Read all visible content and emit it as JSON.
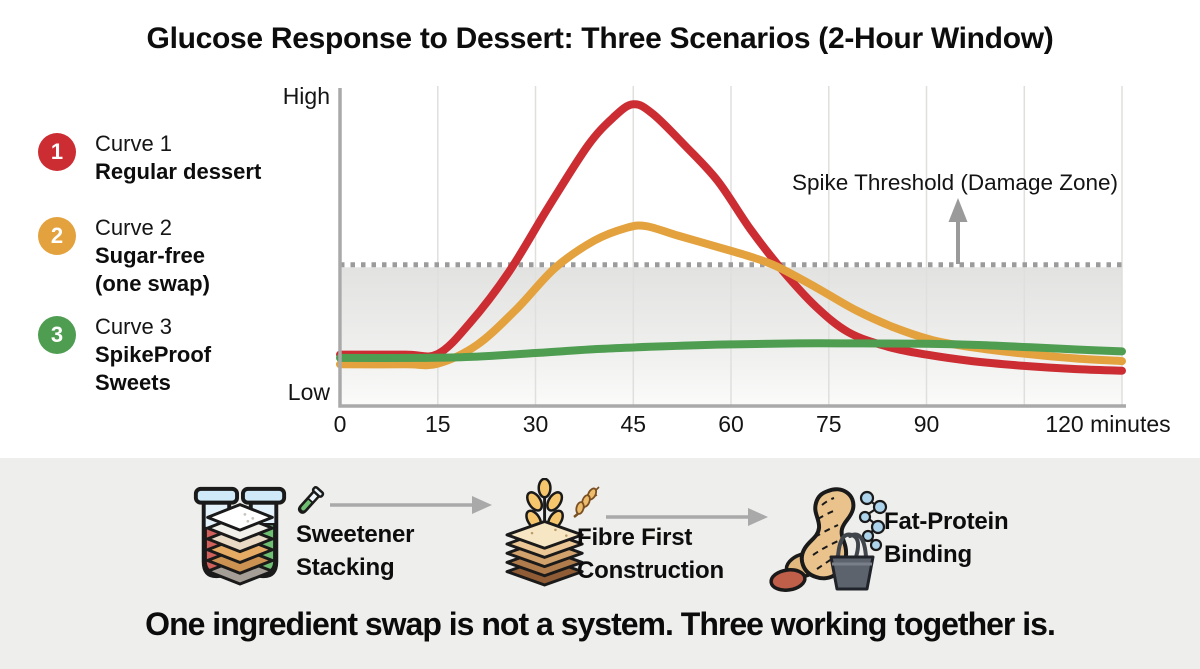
{
  "title": "Glucose Response to Dessert: Three Scenarios (2-Hour Window)",
  "colors": {
    "red": "#cc2d33",
    "orange": "#e3a23d",
    "green": "#4e9d51",
    "threshold_gray": "#9b9b9b",
    "strip_bg": "#eeeeec"
  },
  "legend": {
    "items": [
      {
        "number": "1",
        "color": "#cc2d33",
        "name": "Curve 1",
        "desc_lines": [
          "Regular dessert"
        ]
      },
      {
        "number": "2",
        "color": "#e3a23d",
        "name": "Curve 2",
        "desc_lines": [
          "Sugar-free",
          "(one swap)"
        ]
      },
      {
        "number": "3",
        "color": "#4e9d51",
        "name": "Curve 3",
        "desc_lines": [
          "SpikeProof",
          "Sweets"
        ]
      }
    ]
  },
  "chart": {
    "y_high_label": "High",
    "y_low_label": "Low",
    "x_tick_labels": [
      "0",
      "15",
      "30",
      "45",
      "60",
      "75",
      "90"
    ],
    "x_end_label": "120 minutes",
    "threshold_label": "Spike Threshold (Damage Zone)"
  },
  "chart_data": {
    "type": "line",
    "title": "Glucose Response to Dessert: Three Scenarios (2-Hour Window)",
    "x_unit": "minutes",
    "x_ticks": [
      0,
      15,
      30,
      45,
      60,
      75,
      90,
      105,
      120
    ],
    "xlim": [
      0,
      120
    ],
    "y_axis": {
      "min_label": "Low",
      "max_label": "High",
      "scale": "relative glucose level 0-100"
    },
    "grid": "vertical only",
    "legend_position": "left",
    "threshold": {
      "label": "Spike Threshold (Damage Zone)",
      "value": 44
    },
    "series": [
      {
        "name": "Curve 1 — Regular dessert",
        "color": "#cc2d33",
        "points": [
          [
            0,
            16
          ],
          [
            10,
            16
          ],
          [
            15,
            16.2
          ],
          [
            20,
            26
          ],
          [
            26,
            42
          ],
          [
            32,
            62
          ],
          [
            38,
            81
          ],
          [
            42,
            90
          ],
          [
            45,
            94
          ],
          [
            48,
            91
          ],
          [
            53,
            81
          ],
          [
            58,
            70
          ],
          [
            63,
            55
          ],
          [
            68,
            42
          ],
          [
            73,
            31
          ],
          [
            78,
            23
          ],
          [
            84,
            18.5
          ],
          [
            90,
            16
          ],
          [
            97,
            14
          ],
          [
            105,
            12.5
          ],
          [
            113,
            11.5
          ],
          [
            120,
            11
          ]
        ]
      },
      {
        "name": "Curve 2 — Sugar-free (one swap)",
        "color": "#e3a23d",
        "points": [
          [
            0,
            13
          ],
          [
            10,
            13
          ],
          [
            15,
            13.2
          ],
          [
            21,
            19
          ],
          [
            27,
            30
          ],
          [
            33,
            43
          ],
          [
            39,
            51.5
          ],
          [
            44,
            55.5
          ],
          [
            47,
            56
          ],
          [
            52,
            53
          ],
          [
            58,
            49.5
          ],
          [
            63,
            46.5
          ],
          [
            67,
            43.5
          ],
          [
            73,
            37
          ],
          [
            79,
            30
          ],
          [
            85,
            24.5
          ],
          [
            91,
            20.5
          ],
          [
            98,
            18
          ],
          [
            105,
            16.3
          ],
          [
            113,
            14.8
          ],
          [
            120,
            14
          ]
        ]
      },
      {
        "name": "Curve 3 — SpikeProof Sweets",
        "color": "#4e9d51",
        "points": [
          [
            0,
            15
          ],
          [
            12,
            15
          ],
          [
            20,
            15.3
          ],
          [
            30,
            16.5
          ],
          [
            40,
            17.8
          ],
          [
            50,
            18.6
          ],
          [
            60,
            19.2
          ],
          [
            70,
            19.5
          ],
          [
            80,
            19.5
          ],
          [
            90,
            19.4
          ],
          [
            98,
            19
          ],
          [
            106,
            18.3
          ],
          [
            113,
            17.6
          ],
          [
            120,
            17
          ]
        ]
      }
    ]
  },
  "steps": {
    "items": [
      {
        "label_lines": [
          "Sweetener",
          "Stacking"
        ],
        "icon": "test-tubes-layer-stack-icon",
        "mini_icon": "test-tube-icon"
      },
      {
        "label_lines": [
          "Fibre First",
          "Construction"
        ],
        "icon": "wheat-layer-stack-icon",
        "mini_icon": "wheat-icon"
      },
      {
        "label_lines": [
          "Fat-Protein",
          "Binding"
        ],
        "icon": "peanut-clip-molecule-icon"
      }
    ],
    "arrow_color": "#a9a9a9"
  },
  "footer": {
    "headline": "One ingredient swap is not a system. Three working together is."
  }
}
